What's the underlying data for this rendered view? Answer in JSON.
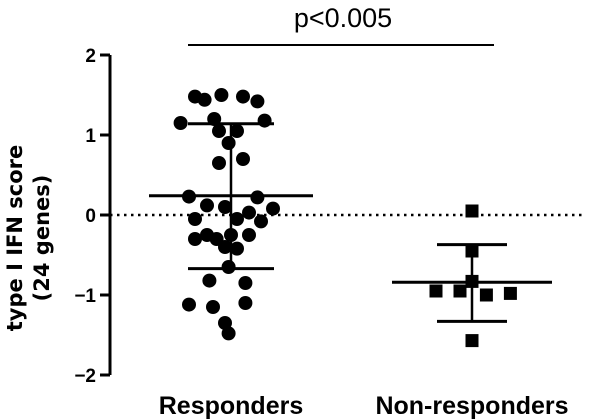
{
  "chart_data": {
    "type": "scatter",
    "title": "",
    "xlabel": "",
    "ylabel": [
      "type I IFN score",
      "(24 genes)"
    ],
    "categories": [
      "Responders",
      "Non-responders"
    ],
    "ylim": [
      -2,
      2
    ],
    "yticks": [
      2,
      1,
      0,
      -1,
      -2
    ],
    "yticklabels": [
      "2",
      "1",
      "0",
      "−1",
      "−2"
    ],
    "reference_line": {
      "y": 0,
      "style": "dotted"
    },
    "significance": {
      "text": "p<0.005",
      "between": [
        "Responders",
        "Non-responders"
      ]
    },
    "grid": false,
    "series": [
      {
        "category": "Responders",
        "marker": "circle",
        "color": "#000000",
        "points": [
          {
            "x": -0.3,
            "y": 1.48
          },
          {
            "x": -0.08,
            "y": 1.5
          },
          {
            "x": 0.1,
            "y": 1.48
          },
          {
            "x": -0.22,
            "y": 1.44
          },
          {
            "x": 0.22,
            "y": 1.42
          },
          {
            "x": -0.14,
            "y": 1.2
          },
          {
            "x": 0.28,
            "y": 1.18
          },
          {
            "x": -0.42,
            "y": 1.15
          },
          {
            "x": 0.05,
            "y": 1.05
          },
          {
            "x": -0.1,
            "y": 1.05
          },
          {
            "x": -0.02,
            "y": 0.9
          },
          {
            "x": -0.1,
            "y": 0.65
          },
          {
            "x": 0.1,
            "y": 0.7
          },
          {
            "x": -0.35,
            "y": 0.23
          },
          {
            "x": 0.22,
            "y": 0.22
          },
          {
            "x": 0.35,
            "y": 0.08
          },
          {
            "x": -0.2,
            "y": 0.12
          },
          {
            "x": -0.05,
            "y": 0.1
          },
          {
            "x": 0.15,
            "y": 0.03
          },
          {
            "x": -0.3,
            "y": -0.05
          },
          {
            "x": 0.05,
            "y": -0.05
          },
          {
            "x": 0.25,
            "y": -0.08
          },
          {
            "x": -0.2,
            "y": -0.25
          },
          {
            "x": 0.0,
            "y": -0.25
          },
          {
            "x": -0.12,
            "y": -0.3
          },
          {
            "x": 0.15,
            "y": -0.25
          },
          {
            "x": 0.05,
            "y": -0.42
          },
          {
            "x": -0.05,
            "y": -0.4
          },
          {
            "x": -0.3,
            "y": -0.3
          },
          {
            "x": -0.02,
            "y": -0.65
          },
          {
            "x": -0.18,
            "y": -0.82
          },
          {
            "x": 0.12,
            "y": -0.85
          },
          {
            "x": -0.35,
            "y": -1.12
          },
          {
            "x": 0.12,
            "y": -1.1
          },
          {
            "x": -0.15,
            "y": -1.15
          },
          {
            "x": -0.05,
            "y": -1.35
          },
          {
            "x": -0.02,
            "y": -1.48
          }
        ],
        "mean": 0.24,
        "sd_upper": 1.14,
        "sd_lower": -0.67
      },
      {
        "category": "Non-responders",
        "marker": "square",
        "color": "#000000",
        "points": [
          {
            "x": 0.0,
            "y": 0.05
          },
          {
            "x": 0.0,
            "y": -0.45
          },
          {
            "x": 0.0,
            "y": -0.83
          },
          {
            "x": -0.3,
            "y": -0.95
          },
          {
            "x": -0.1,
            "y": -0.95
          },
          {
            "x": 0.12,
            "y": -1.0
          },
          {
            "x": 0.32,
            "y": -0.98
          },
          {
            "x": 0.0,
            "y": -1.57
          }
        ],
        "mean": -0.84,
        "sd_upper": -0.37,
        "sd_lower": -1.33
      }
    ]
  }
}
